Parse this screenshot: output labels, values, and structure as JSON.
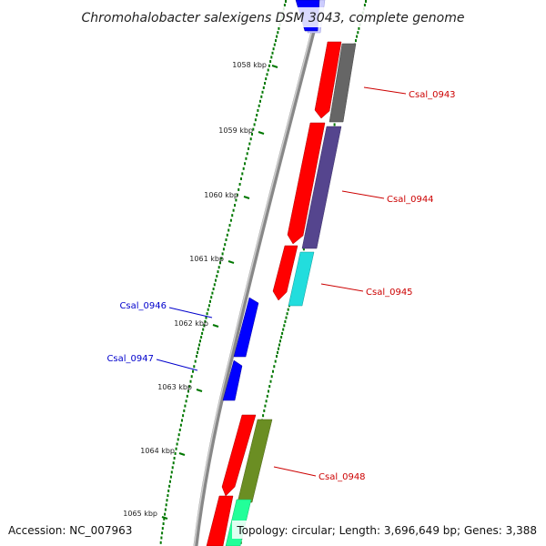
{
  "title": "Chromohalobacter salexigens DSM 3043, complete genome",
  "accession_text": "Accession: NC_007963",
  "topology_text": "Topology: circular; Length: 3,696,649 bp; Genes: 3,388",
  "ruler_labels": [
    "1058 kbp",
    "1059 kbp",
    "1060 kbp",
    "1061 kbp",
    "1062 kbp",
    "1063 kbp",
    "1064 kbp",
    "1065 kbp"
  ],
  "gene_labels": {
    "csal_0943": "Csal_0943",
    "csal_0944": "Csal_0944",
    "csal_0945": "Csal_0945",
    "csal_0946": "Csal_0946",
    "csal_0947": "Csal_0947",
    "csal_0948": "Csal_0948"
  },
  "colors": {
    "forward_strand": "#ff0000",
    "reverse_strand": "#0000ff",
    "backbone": "#888888",
    "tick": "#007700",
    "cog_gray": "#666666",
    "cog_purple": "#55458e",
    "cog_cyan": "#22dddd",
    "cog_olive": "#6b8e23",
    "cog_green": "#22ff99"
  }
}
